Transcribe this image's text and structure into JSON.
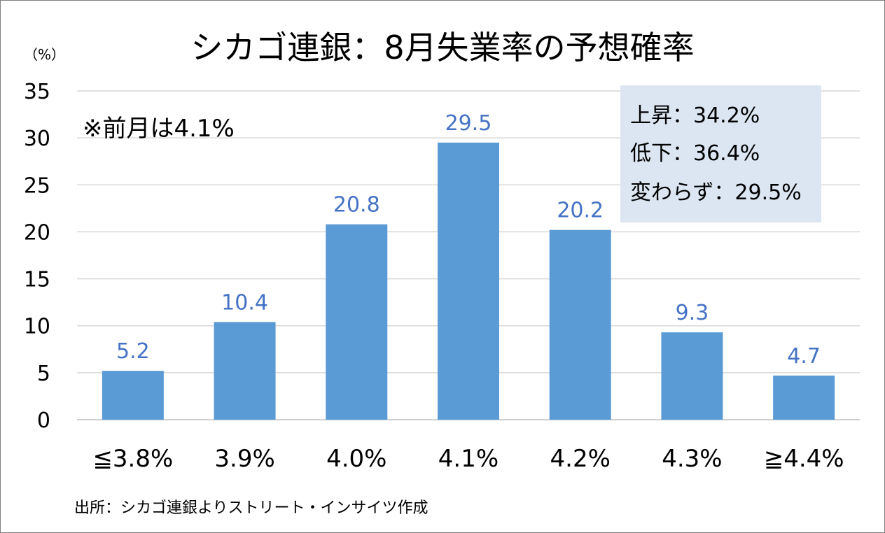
{
  "title": "シカゴ連銀：8月失業率の予想確率",
  "unit_label": "（%）",
  "previous_note": "※前月は4.1%",
  "summary": {
    "lines": [
      "上昇：34.2%",
      "低下：36.4%",
      "変わらず：29.5%"
    ],
    "background": "#dce6f2"
  },
  "source": "出所：シカゴ連銀よりストリート・インサイツ作成",
  "colors": {
    "bar": "#5b9bd5",
    "value_label": "#4472c4",
    "grid": "#d9d9d9"
  },
  "chart_data": {
    "type": "bar",
    "title": "シカゴ連銀：8月失業率の予想確率",
    "categories": [
      "≦3.8%",
      "3.9%",
      "4.0%",
      "4.1%",
      "4.2%",
      "4.3%",
      "≧4.4%"
    ],
    "values": [
      5.2,
      10.4,
      20.8,
      29.5,
      20.2,
      9.3,
      4.7
    ],
    "value_labels": [
      "5.2",
      "10.4",
      "20.8",
      "29.5",
      "20.2",
      "9.3",
      "4.7"
    ],
    "ylim": [
      0,
      35
    ],
    "yticks": [
      0,
      5,
      10,
      15,
      20,
      25,
      30,
      35
    ],
    "ylabel": "（%）",
    "xlabel": "",
    "grid": true
  }
}
